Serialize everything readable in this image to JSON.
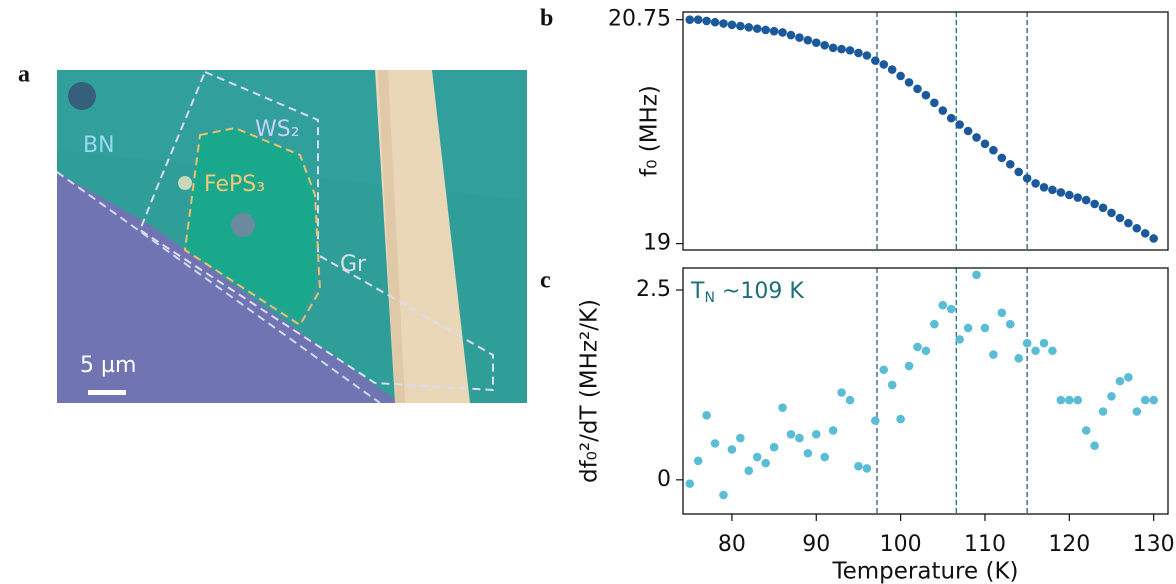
{
  "figure": {
    "panel_labels": [
      "a",
      "b",
      "c"
    ],
    "image_labels": {
      "bn": "BN",
      "ws2": "WS₂",
      "feps3": "FePS₃",
      "gr": "Gr",
      "scale": "5 µm"
    }
  },
  "chart_data": [
    {
      "type": "scatter",
      "ylabel": "f₀ (MHz)",
      "color": "#1a5a9c",
      "x": [
        75,
        76,
        77,
        78,
        79,
        80,
        81,
        82,
        83,
        84,
        85,
        86,
        87,
        88,
        89,
        90,
        91,
        92,
        93,
        94,
        95,
        96,
        97,
        98,
        99,
        100,
        101,
        102,
        103,
        104,
        105,
        106,
        107,
        108,
        109,
        110,
        111,
        112,
        113,
        114,
        115,
        116,
        117,
        118,
        119,
        120,
        121,
        122,
        123,
        124,
        125,
        126,
        127,
        128,
        129,
        130
      ],
      "values": [
        20.75,
        20.75,
        20.74,
        20.73,
        20.72,
        20.71,
        20.7,
        20.69,
        20.68,
        20.67,
        20.66,
        20.65,
        20.63,
        20.61,
        20.59,
        20.57,
        20.55,
        20.53,
        20.52,
        20.51,
        20.49,
        20.47,
        20.43,
        20.4,
        20.36,
        20.31,
        20.26,
        20.21,
        20.16,
        20.1,
        20.04,
        19.98,
        19.93,
        19.88,
        19.83,
        19.78,
        19.73,
        19.67,
        19.62,
        19.56,
        19.51,
        19.47,
        19.44,
        19.42,
        19.4,
        19.38,
        19.36,
        19.34,
        19.31,
        19.28,
        19.24,
        19.2,
        19.16,
        19.12,
        19.08,
        19.04
      ],
      "xlim": [
        74.2,
        131.7
      ],
      "ylim": [
        18.95,
        20.81
      ],
      "yticks": [
        19,
        20.75
      ],
      "vlines": [
        {
          "value": 97.2,
          "color": "#2a5a80"
        },
        {
          "value": 106.6,
          "color": "#1d7a74"
        },
        {
          "value": 115,
          "color": "#2a5a80"
        }
      ]
    },
    {
      "type": "scatter",
      "ylabel": "df₀²/dT (MHz²/K)",
      "xlabel": "Temperature (K)",
      "color": "#5bbcd6",
      "annotation": [
        "T",
        "N",
        " ~109 K"
      ],
      "x": [
        75,
        76,
        77,
        78,
        79,
        80,
        81,
        82,
        83,
        84,
        85,
        86,
        87,
        88,
        89,
        90,
        91,
        92,
        93,
        94,
        95,
        96,
        97,
        98,
        99,
        100,
        101,
        102,
        103,
        104,
        105,
        106,
        107,
        108,
        109,
        110,
        111,
        112,
        113,
        114,
        115,
        116,
        117,
        118,
        119,
        120,
        121,
        122,
        123,
        124,
        125,
        126,
        127,
        128,
        129,
        130
      ],
      "values": [
        -0.05,
        0.25,
        0.85,
        0.48,
        -0.2,
        0.4,
        0.55,
        0.12,
        0.3,
        0.22,
        0.43,
        0.95,
        0.6,
        0.55,
        0.35,
        0.6,
        0.3,
        0.65,
        1.15,
        1.05,
        0.18,
        0.15,
        0.78,
        1.45,
        1.25,
        0.8,
        1.5,
        1.75,
        1.7,
        2.05,
        2.3,
        2.25,
        1.85,
        2.0,
        2.7,
        2.0,
        1.65,
        2.2,
        2.05,
        1.6,
        1.8,
        1.7,
        1.8,
        1.7,
        1.05,
        1.05,
        1.05,
        0.65,
        0.45,
        0.9,
        1.1,
        1.3,
        1.35,
        0.9,
        1.05,
        1.05
      ],
      "xlim": [
        74.2,
        131.7
      ],
      "ylim": [
        -0.45,
        2.79
      ],
      "xticks": [
        80,
        90,
        100,
        110,
        120,
        130
      ],
      "yticks": [
        0,
        2.5
      ],
      "vlines": [
        {
          "value": 97.2,
          "color": "#2a5a80"
        },
        {
          "value": 106.6,
          "color": "#1d7a74"
        },
        {
          "value": 115,
          "color": "#2a5a80"
        }
      ]
    }
  ]
}
